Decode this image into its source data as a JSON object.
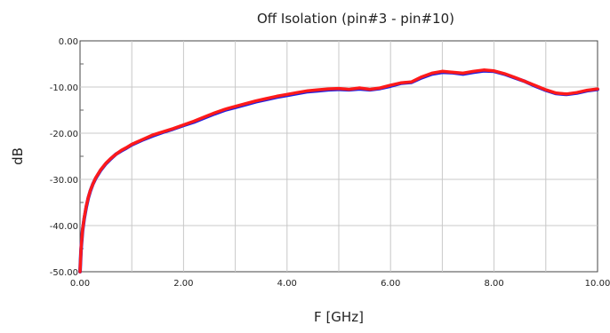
{
  "chart_data": {
    "type": "line",
    "title": "Off Isolation (pin#3 - pin#10)",
    "xlabel": "F [GHz]",
    "ylabel": "dB",
    "xlim": [
      0,
      10
    ],
    "ylim": [
      -50,
      0
    ],
    "x_ticks": [
      "0.00",
      "2.00",
      "4.00",
      "6.00",
      "8.00",
      "10.00"
    ],
    "y_ticks": [
      "0.00",
      "-10.00",
      "-20.00",
      "-30.00",
      "-40.00",
      "-50.00"
    ],
    "grid": true,
    "series": [
      {
        "color": "#2020e0",
        "points": [
          [
            0.0,
            -50.0
          ],
          [
            0.02,
            -45.0
          ],
          [
            0.05,
            -41.0
          ],
          [
            0.08,
            -38.5
          ],
          [
            0.12,
            -36.0
          ],
          [
            0.16,
            -34.0
          ],
          [
            0.2,
            -32.5
          ],
          [
            0.25,
            -31.0
          ],
          [
            0.3,
            -29.8
          ],
          [
            0.4,
            -28.0
          ],
          [
            0.5,
            -26.6
          ],
          [
            0.6,
            -25.5
          ],
          [
            0.7,
            -24.5
          ],
          [
            0.8,
            -23.8
          ],
          [
            0.9,
            -23.2
          ],
          [
            1.0,
            -22.5
          ],
          [
            1.2,
            -21.5
          ],
          [
            1.4,
            -20.6
          ],
          [
            1.6,
            -19.8
          ],
          [
            1.8,
            -19.1
          ],
          [
            2.0,
            -18.3
          ],
          [
            2.2,
            -17.6
          ],
          [
            2.4,
            -16.7
          ],
          [
            2.6,
            -15.8
          ],
          [
            2.8,
            -15.0
          ],
          [
            3.0,
            -14.4
          ],
          [
            3.2,
            -13.8
          ],
          [
            3.4,
            -13.2
          ],
          [
            3.6,
            -12.7
          ],
          [
            3.8,
            -12.2
          ],
          [
            4.0,
            -11.8
          ],
          [
            4.2,
            -11.4
          ],
          [
            4.4,
            -11.0
          ],
          [
            4.6,
            -10.8
          ],
          [
            4.8,
            -10.6
          ],
          [
            5.0,
            -10.5
          ],
          [
            5.2,
            -10.6
          ],
          [
            5.4,
            -10.4
          ],
          [
            5.6,
            -10.6
          ],
          [
            5.8,
            -10.3
          ],
          [
            6.0,
            -9.8
          ],
          [
            6.2,
            -9.2
          ],
          [
            6.4,
            -9.0
          ],
          [
            6.6,
            -8.0
          ],
          [
            6.8,
            -7.2
          ],
          [
            7.0,
            -6.8
          ],
          [
            7.2,
            -6.9
          ],
          [
            7.4,
            -7.2
          ],
          [
            7.6,
            -6.8
          ],
          [
            7.8,
            -6.5
          ],
          [
            8.0,
            -6.6
          ],
          [
            8.2,
            -7.2
          ],
          [
            8.4,
            -8.0
          ],
          [
            8.6,
            -8.8
          ],
          [
            8.8,
            -9.8
          ],
          [
            9.0,
            -10.7
          ],
          [
            9.2,
            -11.4
          ],
          [
            9.4,
            -11.6
          ],
          [
            9.6,
            -11.3
          ],
          [
            9.8,
            -10.8
          ],
          [
            10.0,
            -10.5
          ]
        ]
      },
      {
        "color": "#ff1a1a",
        "points": [
          [
            0.0,
            -50.0
          ],
          [
            0.02,
            -44.8
          ],
          [
            0.05,
            -40.8
          ],
          [
            0.08,
            -38.3
          ],
          [
            0.12,
            -35.8
          ],
          [
            0.16,
            -33.9
          ],
          [
            0.2,
            -32.4
          ],
          [
            0.25,
            -31.0
          ],
          [
            0.3,
            -29.7
          ],
          [
            0.4,
            -27.9
          ],
          [
            0.5,
            -26.5
          ],
          [
            0.6,
            -25.4
          ],
          [
            0.7,
            -24.5
          ],
          [
            0.8,
            -23.7
          ],
          [
            0.9,
            -23.1
          ],
          [
            1.0,
            -22.4
          ],
          [
            1.2,
            -21.4
          ],
          [
            1.4,
            -20.4
          ],
          [
            1.6,
            -19.7
          ],
          [
            1.8,
            -19.0
          ],
          [
            2.0,
            -18.2
          ],
          [
            2.2,
            -17.4
          ],
          [
            2.4,
            -16.5
          ],
          [
            2.6,
            -15.6
          ],
          [
            2.8,
            -14.8
          ],
          [
            3.0,
            -14.2
          ],
          [
            3.2,
            -13.6
          ],
          [
            3.4,
            -13.0
          ],
          [
            3.6,
            -12.5
          ],
          [
            3.8,
            -12.0
          ],
          [
            4.0,
            -11.6
          ],
          [
            4.2,
            -11.2
          ],
          [
            4.4,
            -10.8
          ],
          [
            4.6,
            -10.6
          ],
          [
            4.8,
            -10.4
          ],
          [
            5.0,
            -10.3
          ],
          [
            5.2,
            -10.5
          ],
          [
            5.4,
            -10.2
          ],
          [
            5.6,
            -10.5
          ],
          [
            5.8,
            -10.2
          ],
          [
            6.0,
            -9.6
          ],
          [
            6.2,
            -9.1
          ],
          [
            6.4,
            -8.9
          ],
          [
            6.6,
            -7.8
          ],
          [
            6.8,
            -7.0
          ],
          [
            7.0,
            -6.6
          ],
          [
            7.2,
            -6.8
          ],
          [
            7.4,
            -7.0
          ],
          [
            7.6,
            -6.6
          ],
          [
            7.8,
            -6.3
          ],
          [
            8.0,
            -6.5
          ],
          [
            8.2,
            -7.1
          ],
          [
            8.4,
            -7.9
          ],
          [
            8.6,
            -8.8
          ],
          [
            8.8,
            -9.7
          ],
          [
            9.0,
            -10.6
          ],
          [
            9.2,
            -11.3
          ],
          [
            9.4,
            -11.5
          ],
          [
            9.6,
            -11.2
          ],
          [
            9.8,
            -10.7
          ],
          [
            10.0,
            -10.4
          ]
        ]
      }
    ]
  }
}
